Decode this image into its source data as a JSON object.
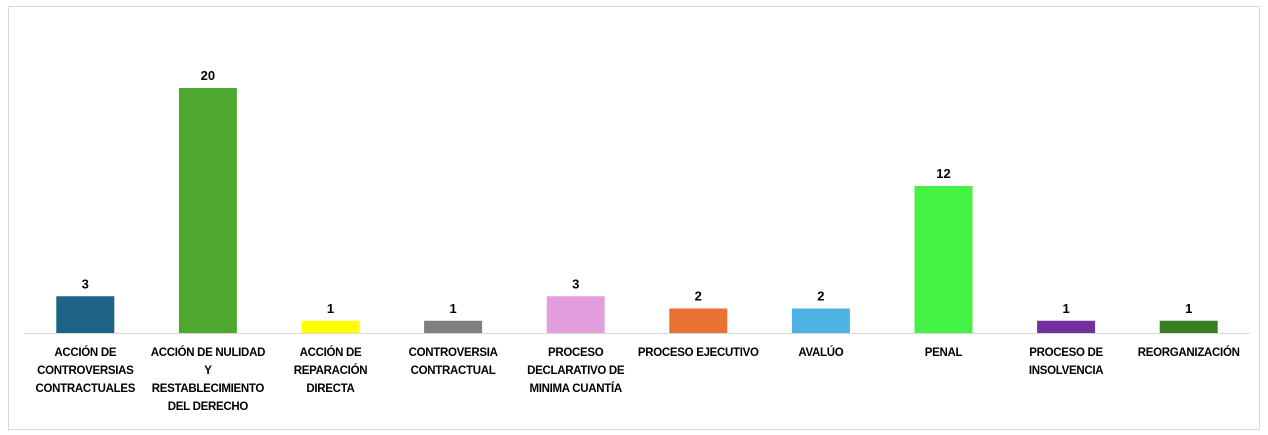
{
  "chart_data": {
    "type": "bar",
    "categories": [
      "ACCIÓN DE CONTROVERSIAS CONTRACTUALES",
      "ACCIÓN DE NULIDAD Y RESTABLECIMIENTO DEL DERECHO",
      "ACCIÓN DE REPARACIÓN DIRECTA",
      "CONTROVERSIA CONTRACTUAL",
      "PROCESO DECLARATIVO DE MINIMA CUANTÍA",
      "PROCESO EJECUTIVO",
      "AVALÚO",
      "PENAL",
      "PROCESO DE INSOLVENCIA",
      "REORGANIZACIÓN"
    ],
    "values": [
      3,
      20,
      1,
      1,
      3,
      2,
      2,
      12,
      1,
      1
    ],
    "colors": [
      "#1d6287",
      "#4ea72e",
      "#ffff00",
      "#808080",
      "#e59edd",
      "#e97132",
      "#4eb1e3",
      "#44f244",
      "#7030a0",
      "#3b7d23"
    ]
  }
}
